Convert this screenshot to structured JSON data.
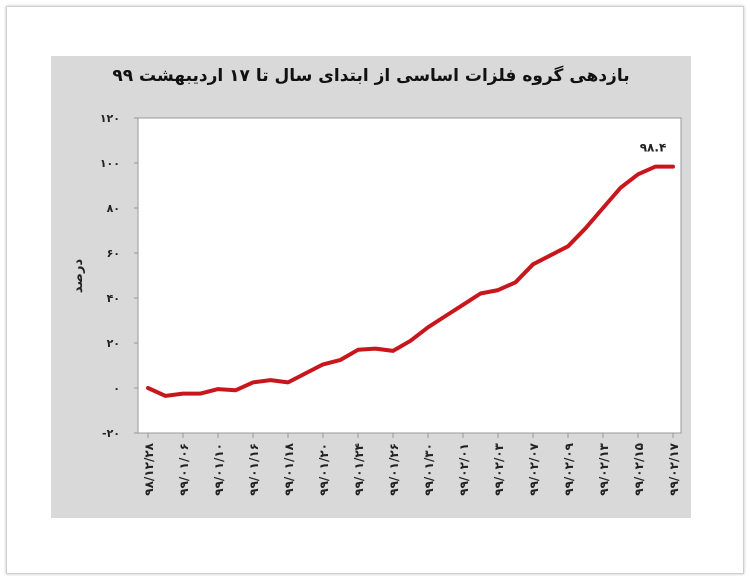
{
  "chart_data": {
    "type": "line",
    "title": "بازدهی گروه فلزات اساسی از ابتدای سال تا ۱۷ اردیبهشت ۹۹",
    "ylabel": "درصد",
    "xlabel": "",
    "ylim": [
      -20,
      120
    ],
    "y_ticks": [
      -20,
      0,
      20,
      40,
      60,
      80,
      100,
      120
    ],
    "y_tick_labels": [
      "-۲۰",
      "۰",
      "۲۰",
      "۴۰",
      "۶۰",
      "۸۰",
      "۱۰۰",
      "۱۲۰"
    ],
    "x_tick_labels": [
      "۹۸/۱۲/۲۸",
      "۹۹/۰۱/۰۶",
      "۹۹/۰۱/۱۰",
      "۹۹/۰۱/۱۶",
      "۹۹/۰۱/۱۸",
      "۹۹/۰۱/۲۰",
      "۹۹/۰۱/۲۴",
      "۹۹/۰۱/۲۶",
      "۹۹/۰۱/۳۰",
      "۹۹/۰۲/۰۱",
      "۹۹/۰۲/۰۳",
      "۹۹/۰۲/۰۷",
      "۹۹/۰۲/۰۹",
      "۹۹/۰۲/۱۳",
      "۹۹/۰۲/۱۵",
      "۹۹/۰۲/۱۷"
    ],
    "grid": false,
    "legend": "none",
    "series": [
      {
        "color": "#c8161d",
        "values": [
          0,
          -3.5,
          -2.5,
          -2.5,
          -0.5,
          -1,
          2.5,
          3.5,
          2.5,
          6.5,
          10.5,
          12.5,
          17,
          17.5,
          16.5,
          21,
          27,
          32,
          37,
          42,
          43.5,
          47,
          55,
          59,
          63,
          71,
          80,
          89,
          95,
          98.4,
          98.4
        ]
      }
    ],
    "annotations": [
      {
        "text": "۹۸.۴",
        "value": 98.4
      }
    ],
    "colors": {
      "panel": "#d9d9d9",
      "plot": "#ffffff",
      "axis": "#999999"
    }
  }
}
